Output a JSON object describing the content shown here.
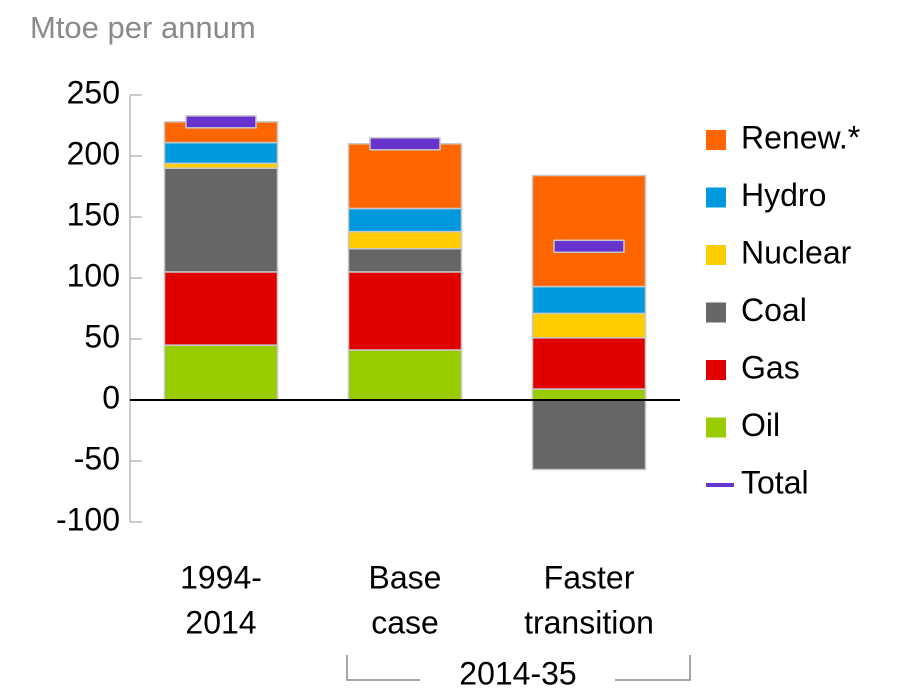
{
  "chart_data": {
    "type": "stacked-bar",
    "y_label": "Mtoe per annum",
    "categories": [
      [
        "1994-",
        "2014"
      ],
      [
        "Base",
        "case"
      ],
      [
        "Faster",
        "transition"
      ]
    ],
    "group_label": "2014-35",
    "series": [
      {
        "name": "Oil",
        "color": "#99cc00",
        "values": [
          45,
          41,
          9
        ]
      },
      {
        "name": "Gas",
        "color": "#e00000",
        "values": [
          60,
          64,
          42
        ]
      },
      {
        "name": "Coal",
        "color": "#666666",
        "values": [
          85,
          19,
          -57
        ]
      },
      {
        "name": "Nuclear",
        "color": "#ffcc00",
        "values": [
          4,
          14,
          20
        ]
      },
      {
        "name": "Hydro",
        "color": "#0099dd",
        "values": [
          17,
          19,
          22
        ]
      },
      {
        "name": "Renew.*",
        "color": "#ff6600",
        "values": [
          17,
          53,
          91
        ]
      }
    ],
    "total": {
      "name": "Total",
      "color": "#6633cc",
      "values": [
        228,
        210,
        126
      ]
    },
    "ylim": [
      -100,
      250
    ],
    "yticks": [
      -100,
      -50,
      0,
      50,
      100,
      150,
      200,
      250
    ]
  }
}
